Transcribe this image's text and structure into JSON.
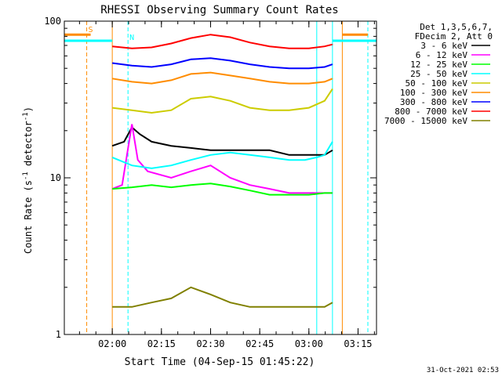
{
  "chart_data": {
    "type": "line",
    "title": "RHESSI Observing Summary Count Rates",
    "xlabel": "Start Time (04-Sep-15 01:45:22)",
    "ylabel_main": "Count Rate (s",
    "ylabel_sup1": "-1",
    "ylabel_mid": " detector",
    "ylabel_sup2": "-1",
    "ylabel_end": ")",
    "yscale": "log",
    "xlim": [
      1.7561,
      3.3439
    ],
    "ylim": [
      1,
      100
    ],
    "x_ticks": [
      {
        "x": 2.0,
        "label": "02:00"
      },
      {
        "x": 2.25,
        "label": "02:15"
      },
      {
        "x": 2.5,
        "label": "02:30"
      },
      {
        "x": 2.75,
        "label": "02:45"
      },
      {
        "x": 3.0,
        "label": "03:00"
      },
      {
        "x": 3.25,
        "label": "03:15"
      }
    ],
    "y_ticks": [
      {
        "y": 1,
        "label": "1"
      },
      {
        "y": 10,
        "label": "10"
      },
      {
        "y": 100,
        "label": "100"
      }
    ],
    "legend_header": [
      "Det 1,3,5,6,7,",
      "FDecim 2, Att 0"
    ],
    "legend_position": "right",
    "series": [
      {
        "name": "3 - 6 keV",
        "color": "#000000",
        "x": [
          2.0,
          2.06,
          2.1,
          2.14,
          2.2,
          2.3,
          2.4,
          2.5,
          2.6,
          2.7,
          2.8,
          2.9,
          2.98,
          3.03,
          3.08,
          3.12
        ],
        "y": [
          16,
          17,
          21,
          19,
          17,
          16,
          15.5,
          15,
          15,
          15,
          15,
          14,
          14,
          14,
          14,
          15
        ]
      },
      {
        "name": "6 - 12 keV",
        "color": "#ff00ff",
        "x": [
          2.0,
          2.05,
          2.1,
          2.13,
          2.18,
          2.3,
          2.4,
          2.5,
          2.6,
          2.7,
          2.8,
          2.9,
          3.0,
          3.08,
          3.12
        ],
        "y": [
          8.5,
          9,
          22,
          13,
          11,
          10,
          11,
          12,
          10,
          9,
          8.5,
          8,
          8,
          8,
          8
        ]
      },
      {
        "name": "12 - 25 keV",
        "color": "#00ff00",
        "x": [
          2.0,
          2.1,
          2.2,
          2.3,
          2.4,
          2.5,
          2.6,
          2.7,
          2.8,
          2.9,
          3.0,
          3.08,
          3.12
        ],
        "y": [
          8.5,
          8.7,
          9,
          8.7,
          9,
          9.2,
          8.8,
          8.3,
          7.8,
          7.8,
          7.8,
          8,
          8
        ]
      },
      {
        "name": "25 - 50 keV",
        "color": "#00ffff",
        "x": [
          2.0,
          2.1,
          2.2,
          2.3,
          2.4,
          2.5,
          2.6,
          2.7,
          2.8,
          2.9,
          2.98,
          3.04,
          3.08,
          3.12
        ],
        "y": [
          13.5,
          12,
          11.5,
          12,
          13,
          14,
          14.5,
          14,
          13.5,
          13,
          13,
          13.5,
          14,
          17
        ]
      },
      {
        "name": "50 - 100 keV",
        "color": "#cccc00",
        "x": [
          2.0,
          2.1,
          2.2,
          2.3,
          2.4,
          2.5,
          2.6,
          2.7,
          2.8,
          2.9,
          3.0,
          3.08,
          3.12
        ],
        "y": [
          28,
          27,
          26,
          27,
          32,
          33,
          31,
          28,
          27,
          27,
          28,
          31,
          37
        ]
      },
      {
        "name": "100 - 300 keV",
        "color": "#ff8c00",
        "x": [
          2.0,
          2.1,
          2.2,
          2.3,
          2.4,
          2.5,
          2.6,
          2.7,
          2.8,
          2.9,
          3.0,
          3.08,
          3.12
        ],
        "y": [
          43,
          41,
          40,
          42,
          46,
          47,
          45,
          43,
          41,
          40,
          40,
          41,
          43
        ]
      },
      {
        "name": "300 - 800 keV",
        "color": "#0000ff",
        "x": [
          2.0,
          2.1,
          2.2,
          2.3,
          2.4,
          2.5,
          2.6,
          2.7,
          2.8,
          2.9,
          3.0,
          3.08,
          3.12
        ],
        "y": [
          54,
          52,
          51,
          53,
          57,
          58,
          56,
          53,
          51,
          50,
          50,
          51,
          53
        ]
      },
      {
        "name": "800 - 7000 keV",
        "color": "#ff0000",
        "x": [
          2.0,
          2.1,
          2.2,
          2.3,
          2.4,
          2.5,
          2.6,
          2.7,
          2.8,
          2.9,
          3.0,
          3.08,
          3.12
        ],
        "y": [
          69,
          67,
          68,
          72,
          78,
          82,
          79,
          73,
          69,
          67,
          67,
          69,
          71
        ]
      },
      {
        "name": "7000 - 15000 keV",
        "color": "#808000",
        "x": [
          2.0,
          2.1,
          2.2,
          2.3,
          2.4,
          2.5,
          2.6,
          2.7,
          2.8,
          2.9,
          3.0,
          3.08,
          3.12
        ],
        "y": [
          1.5,
          1.5,
          1.6,
          1.7,
          2.0,
          1.8,
          1.6,
          1.5,
          1.5,
          1.5,
          1.5,
          1.5,
          1.6
        ]
      }
    ],
    "attenuator_bars": [
      {
        "color": "#00ffff",
        "y": 75,
        "x_ranges": [
          [
            1.7561,
            2.0
          ],
          [
            3.12,
            3.3439
          ]
        ]
      },
      {
        "color": "#ff8c00",
        "y": 82,
        "x_ranges": [
          [
            1.7561,
            1.89
          ],
          [
            3.17,
            3.3
          ]
        ]
      }
    ],
    "vertical_markers": [
      {
        "x": 1.87,
        "color": "#ff8c00",
        "style": "dashed"
      },
      {
        "x": 2.0,
        "color": "#ff8c00",
        "style": "solid"
      },
      {
        "x": 2.08,
        "color": "#00ffff",
        "style": "dashed"
      },
      {
        "x": 3.04,
        "color": "#00ffff",
        "style": "solid"
      },
      {
        "x": 3.12,
        "color": "#00ffff",
        "style": "solid"
      },
      {
        "x": 3.17,
        "color": "#ff8c00",
        "style": "solid"
      },
      {
        "x": 3.3,
        "color": "#00ffff",
        "style": "dashed"
      }
    ],
    "marker_labels": [
      {
        "text": "S",
        "x": 1.89,
        "y": 85,
        "color": "#ff8c00"
      },
      {
        "text": "N",
        "x": 2.1,
        "y": 76,
        "color": "#00ffff"
      }
    ],
    "timestamp": "31-Oct-2021 02:53",
    "grid": false
  }
}
